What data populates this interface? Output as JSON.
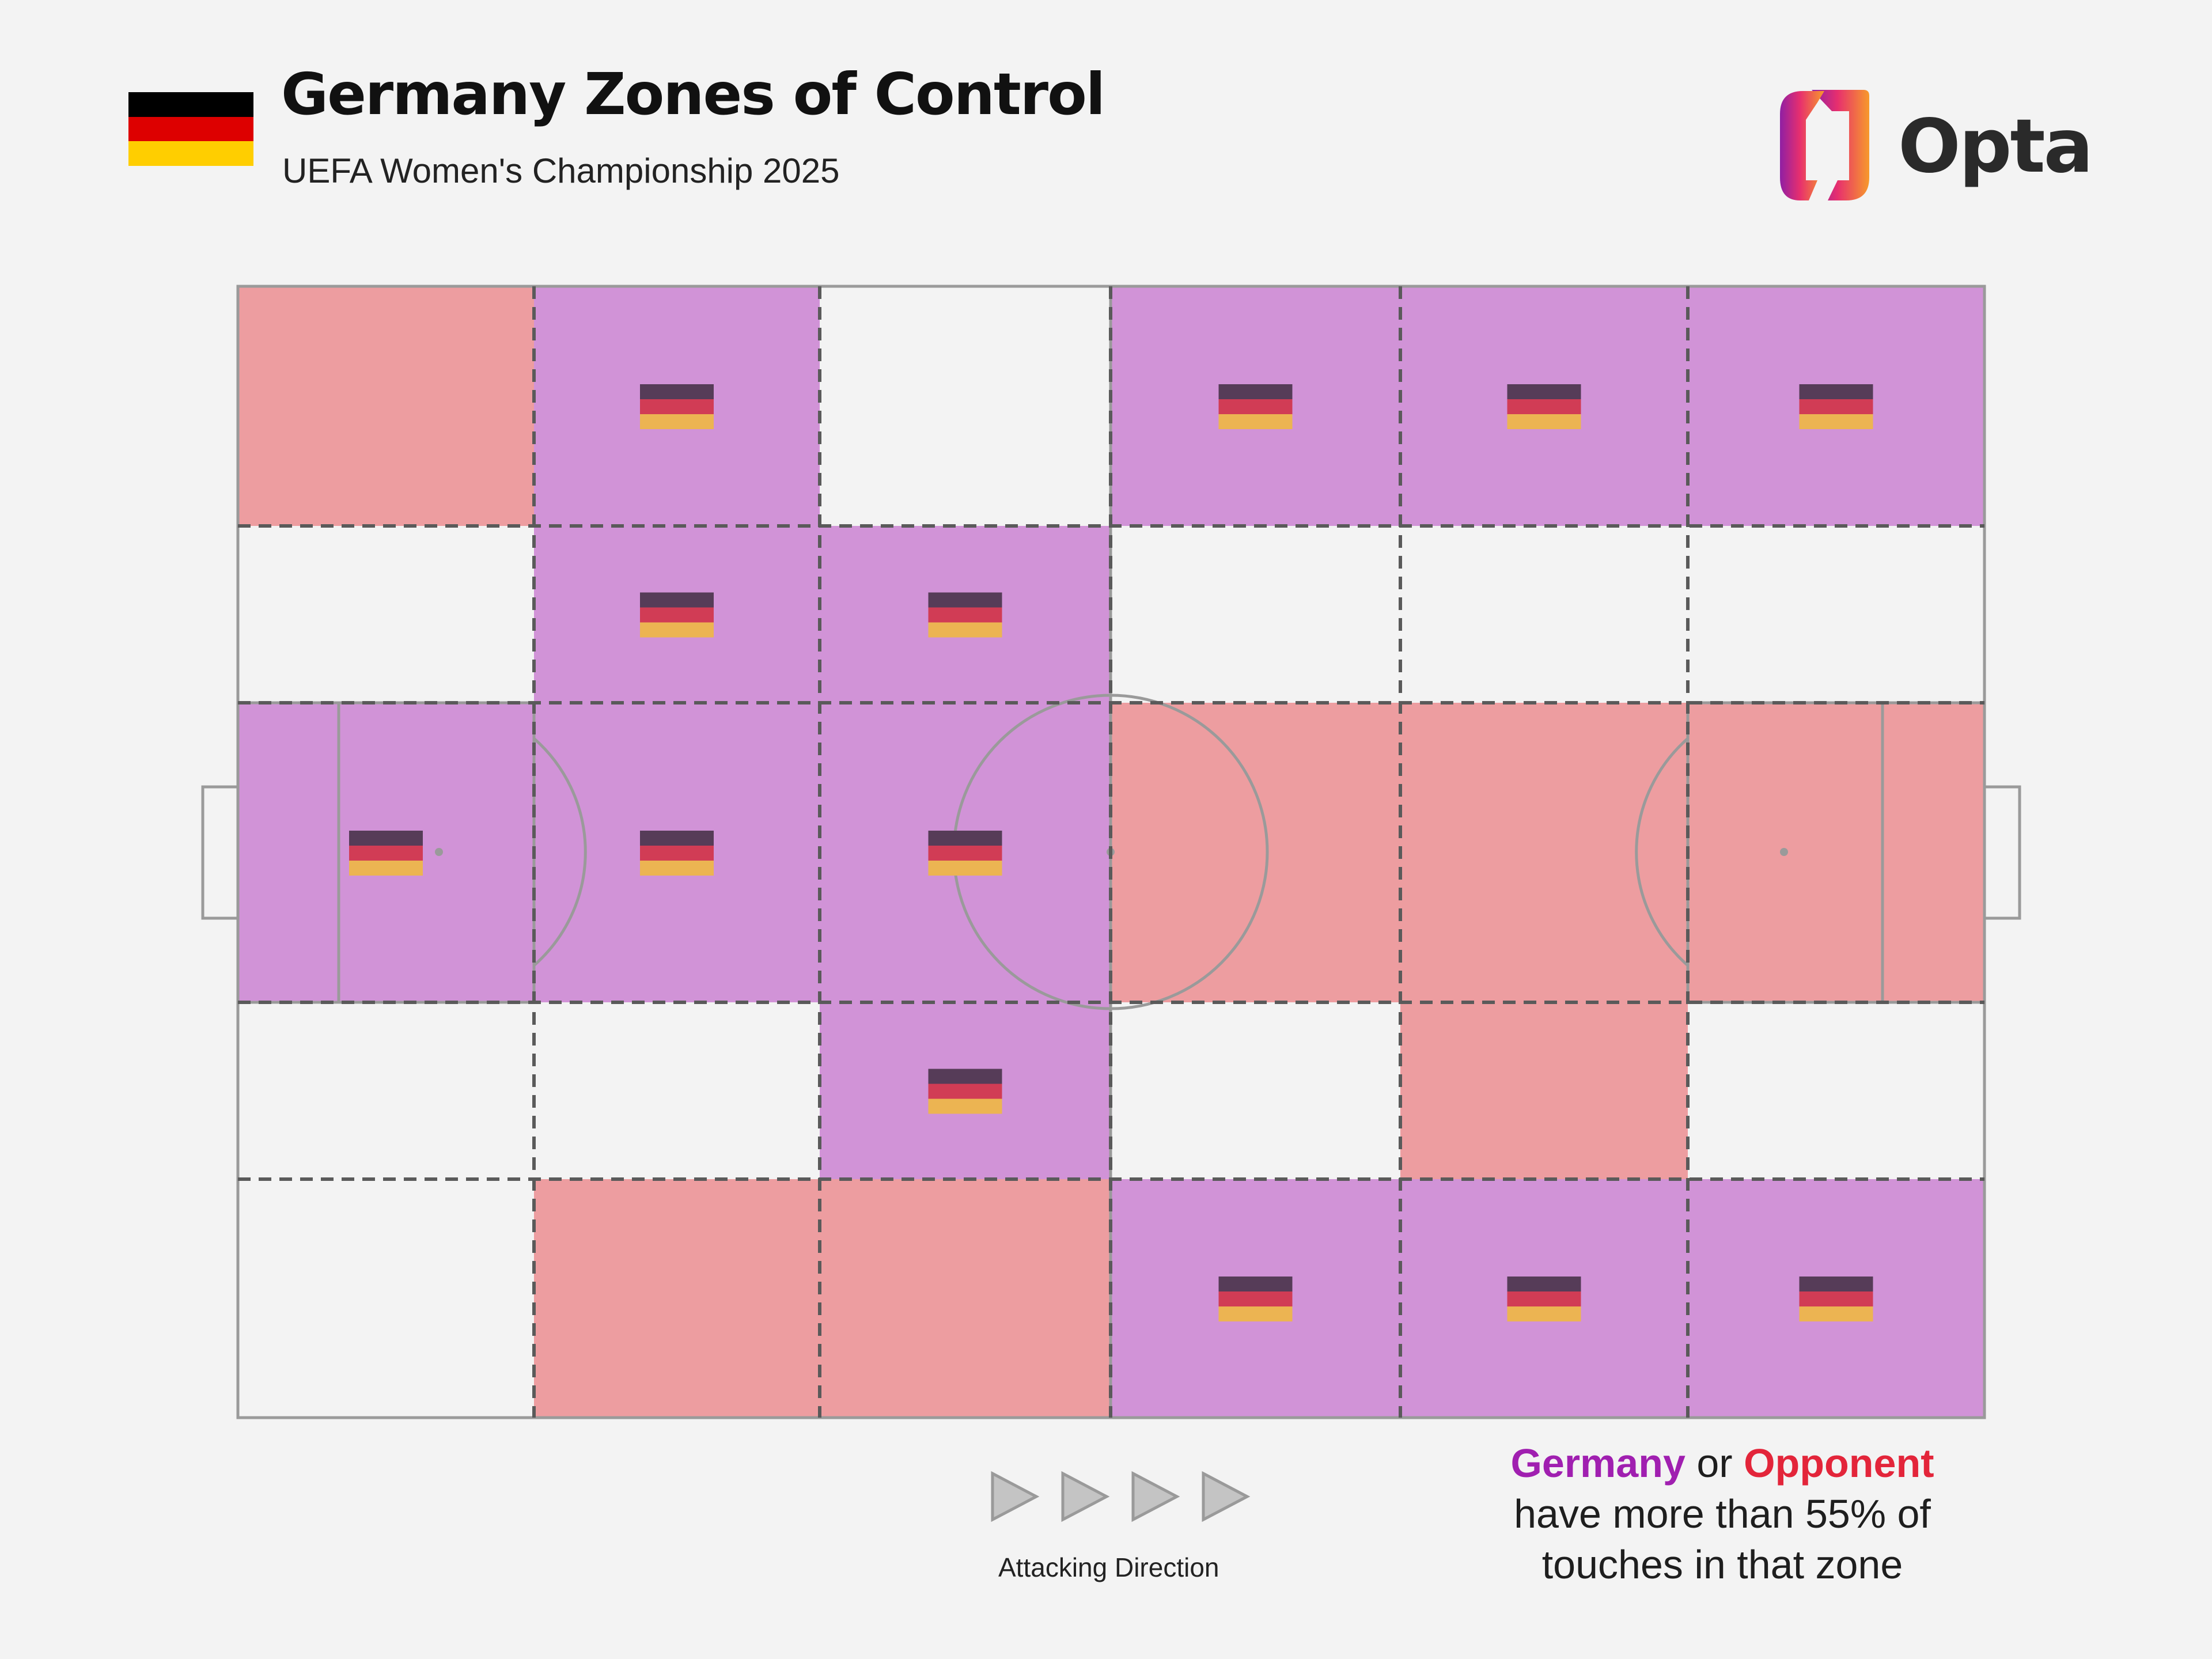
{
  "header": {
    "title": "Germany Zones of Control",
    "subtitle": "UEFA Women's Championship 2025",
    "flag_colors": [
      "#000000",
      "#dd0000",
      "#ffce00"
    ]
  },
  "brand": {
    "name": "Opta"
  },
  "chart_data": {
    "type": "heatmap",
    "title": "Germany Zones of Control",
    "subtitle": "UEFA Women's Championship 2025",
    "columns": 6,
    "rows": 5,
    "zones": [
      [
        "opponent",
        "germany",
        "neutral",
        "germany",
        "germany",
        "germany"
      ],
      [
        "neutral",
        "germany",
        "germany",
        "neutral",
        "neutral",
        "neutral"
      ],
      [
        "germany",
        "germany",
        "germany",
        "opponent",
        "opponent",
        "opponent"
      ],
      [
        "neutral",
        "neutral",
        "germany",
        "neutral",
        "opponent",
        "neutral"
      ],
      [
        "neutral",
        "opponent",
        "opponent",
        "germany",
        "germany",
        "germany"
      ]
    ],
    "threshold_percent": 55,
    "colors": {
      "germany": "#d193d7",
      "opponent": "#ed9da0",
      "neutral": "#f3f3f3",
      "marker_flag": [
        "#563c58",
        "#d13c55",
        "#ecb452"
      ]
    },
    "direction_label": "Attacking Direction"
  },
  "legend": {
    "germany": "Germany",
    "connector": "or",
    "opponent": "Opponent",
    "line2": "have more than 55% of",
    "line3": "touches in that zone"
  }
}
